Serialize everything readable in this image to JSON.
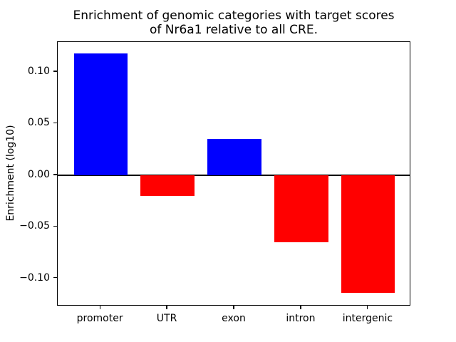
{
  "figure": {
    "background_color": "#ffffff",
    "text_color": "#000000"
  },
  "chart_data": {
    "type": "bar",
    "title": "Enrichment of genomic categories with target scores\nof Nr6a1 relative to all CRE.",
    "xlabel": "",
    "ylabel": "Enrichment (log10)",
    "categories": [
      "promoter",
      "UTR",
      "exon",
      "intron",
      "intergenic"
    ],
    "values": [
      0.118,
      -0.02,
      0.035,
      -0.065,
      -0.114
    ],
    "bar_colors": [
      "#0000ff",
      "#ff0000",
      "#0000ff",
      "#ff0000",
      "#ff0000"
    ],
    "positive_color": "#0000ff",
    "negative_color": "#ff0000",
    "bar_width": 0.8,
    "ylim": [
      -0.127,
      0.129
    ],
    "xlim": [
      -0.64,
      4.64
    ],
    "yticks": [
      0.1,
      0.05,
      0.0,
      -0.05,
      -0.1
    ],
    "ytick_labels": [
      "0.10",
      "0.05",
      "0.00",
      "−0.05",
      "−0.10"
    ],
    "zero_line": true,
    "grid": false,
    "legend": null
  }
}
